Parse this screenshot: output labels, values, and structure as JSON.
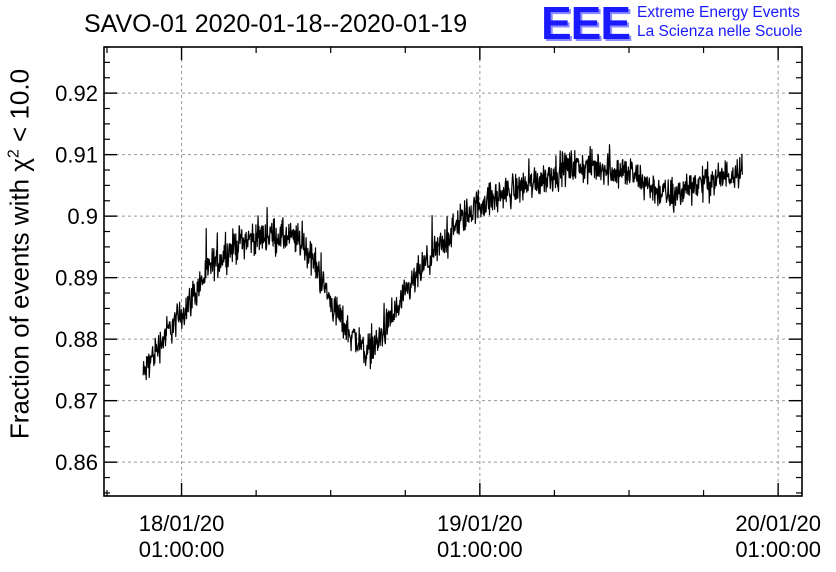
{
  "title": "SAVO-01 2020-01-18--2020-01-19",
  "logo": {
    "mark": "EEE",
    "line1": "Extreme Energy Events",
    "line2": "La Scienza nelle Scuole",
    "color": "#1a1aff"
  },
  "y_axis_label": {
    "prefix": "Fraction of events with ",
    "symbol": "χ",
    "superscript": "2",
    "suffix": " < 10.0"
  },
  "chart_data": {
    "type": "line",
    "title": "SAVO-01 2020-01-18--2020-01-19",
    "ylabel": "Fraction of events with χ² < 10.0",
    "xlabel": "",
    "xlim": [
      0.74,
      3.08
    ],
    "ylim": [
      0.8545,
      0.9275
    ],
    "x_tick_values": [
      1.0,
      2.0,
      3.0
    ],
    "x_tick_labels": [
      [
        "18/01/20",
        "01:00:00"
      ],
      [
        "19/01/20",
        "01:00:00"
      ],
      [
        "20/01/20",
        "01:00:00"
      ]
    ],
    "x_unit": "days",
    "y_ticks": [
      0.86,
      0.87,
      0.88,
      0.89,
      0.9,
      0.91,
      0.92
    ],
    "y_tick_labels": [
      "0.86",
      "0.87",
      "0.88",
      "0.89",
      "0.9",
      "0.91",
      "0.92"
    ],
    "grid": true,
    "line_color": "#000000",
    "series": [
      {
        "trend_x": [
          0.87,
          0.9,
          0.95,
          1.0,
          1.05,
          1.1,
          1.15,
          1.2,
          1.3,
          1.4,
          1.45,
          1.5,
          1.55,
          1.6,
          1.62,
          1.65,
          1.7,
          1.75,
          1.8,
          1.85,
          1.9,
          1.95,
          2.0,
          2.05,
          2.1,
          2.15,
          2.2,
          2.3,
          2.4,
          2.5,
          2.6,
          2.65,
          2.7,
          2.8,
          2.88
        ],
        "trend_y": [
          0.874,
          0.877,
          0.881,
          0.884,
          0.888,
          0.892,
          0.894,
          0.896,
          0.897,
          0.896,
          0.892,
          0.886,
          0.882,
          0.879,
          0.878,
          0.879,
          0.883,
          0.887,
          0.891,
          0.894,
          0.897,
          0.9,
          0.902,
          0.903,
          0.904,
          0.905,
          0.906,
          0.908,
          0.908,
          0.907,
          0.904,
          0.903,
          0.905,
          0.906,
          0.908
        ],
        "noise_amplitude": 0.004
      }
    ]
  }
}
